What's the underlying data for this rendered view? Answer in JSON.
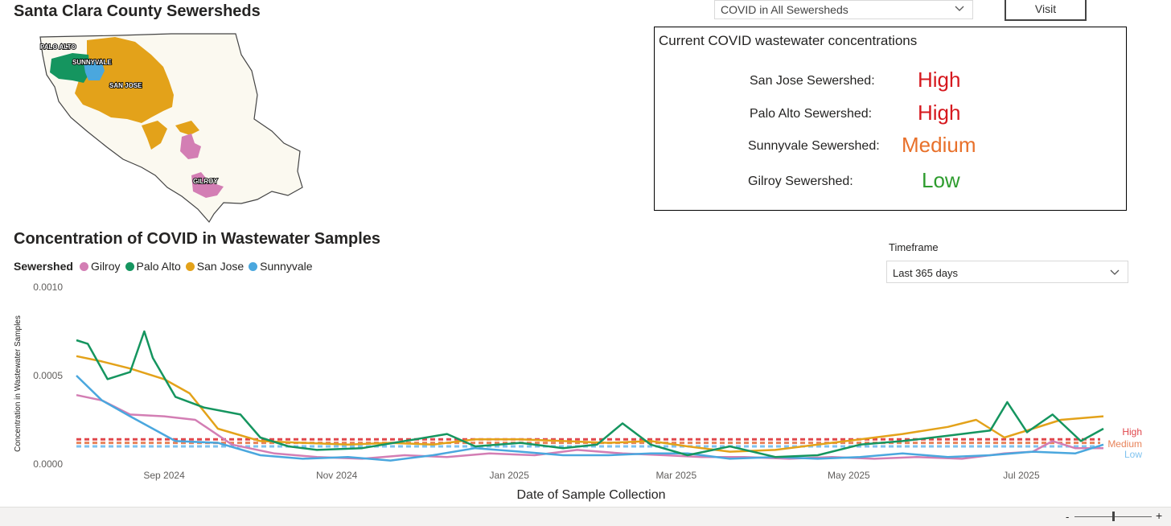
{
  "map_panel": {
    "title": "Santa Clara County Sewersheds",
    "labels": {
      "palo_alto": "PALO ALTO",
      "sunnyvale": "SUNNYVALE",
      "san_jose": "SAN JOSE",
      "gilroy": "GILROY"
    }
  },
  "controls": {
    "measure_select": "COVID in All Sewersheds",
    "visit_button": "Visit"
  },
  "concentrations": {
    "title": "Current COVID wastewater concentrations",
    "rows": [
      {
        "name": "San Jose Sewershed:",
        "level": "High",
        "color": "#d6181e"
      },
      {
        "name": "Palo Alto Sewershed:",
        "level": "High",
        "color": "#d6181e"
      },
      {
        "name": "Sunnyvale Sewershed:",
        "level": "Medium",
        "color": "#e8702a"
      },
      {
        "name": "Gilroy Sewershed:",
        "level": "Low",
        "color": "#2e9c2e"
      }
    ]
  },
  "timeframe": {
    "label": "Timeframe",
    "value": "Last 365 days"
  },
  "colors": {
    "gilroy": "#d37eb4",
    "palo_alto": "#15955f",
    "san_jose": "#e3a21a",
    "sunnyvale": "#4aa7de",
    "high_line": "#e0474c",
    "medium_line": "#e8835a",
    "low_line": "#7ec2ef"
  },
  "chart_data": {
    "type": "line",
    "title": "Concentration of COVID in Wastewater Samples",
    "legend_title": "Sewershed",
    "legend_placement": "top-left",
    "xlabel": "Date of Sample Collection",
    "ylabel": "Concentration in Wastewater Samples",
    "x_range": [
      "2024-08-01",
      "2025-07-30"
    ],
    "ylim": [
      0,
      0.001
    ],
    "y_ticks": [
      "0.0000",
      "0.0005",
      "0.0010"
    ],
    "x_ticks": [
      {
        "date": "2024-09-01",
        "label": "Sep 2024"
      },
      {
        "date": "2024-11-01",
        "label": "Nov 2024"
      },
      {
        "date": "2025-01-01",
        "label": "Jan 2025"
      },
      {
        "date": "2025-03-01",
        "label": "Mar 2025"
      },
      {
        "date": "2025-05-01",
        "label": "May 2025"
      },
      {
        "date": "2025-07-01",
        "label": "Jul 2025"
      }
    ],
    "grid": false,
    "thresholds": [
      {
        "name": "High",
        "value": 0.00014
      },
      {
        "name": "Medium",
        "value": 0.00012
      },
      {
        "name": "Low",
        "value": 0.0001
      }
    ],
    "series": [
      {
        "name": "Gilroy",
        "x": [
          "2024-08-01",
          "2024-08-10",
          "2024-08-20",
          "2024-09-01",
          "2024-09-12",
          "2024-09-25",
          "2024-10-10",
          "2024-10-25",
          "2024-11-10",
          "2024-11-25",
          "2024-12-10",
          "2024-12-25",
          "2025-01-10",
          "2025-01-25",
          "2025-02-10",
          "2025-02-25",
          "2025-03-10",
          "2025-03-25",
          "2025-04-10",
          "2025-04-25",
          "2025-05-10",
          "2025-05-25",
          "2025-06-10",
          "2025-06-25",
          "2025-07-05",
          "2025-07-12",
          "2025-07-20",
          "2025-07-30"
        ],
        "values": [
          0.00039,
          0.00036,
          0.00028,
          0.00027,
          0.00025,
          0.00011,
          6e-05,
          4e-05,
          3e-05,
          5e-05,
          4e-05,
          6e-05,
          5e-05,
          8e-05,
          6e-05,
          5e-05,
          4e-05,
          4e-05,
          3e-05,
          4e-05,
          3e-05,
          4e-05,
          3e-05,
          6e-05,
          7e-05,
          0.00013,
          9e-05,
          9e-05
        ]
      },
      {
        "name": "Palo Alto",
        "x": [
          "2024-08-01",
          "2024-08-05",
          "2024-08-12",
          "2024-08-20",
          "2024-08-25",
          "2024-08-28",
          "2024-09-05",
          "2024-09-15",
          "2024-09-28",
          "2024-10-05",
          "2024-10-15",
          "2024-10-25",
          "2024-11-10",
          "2024-11-25",
          "2024-12-10",
          "2024-12-20",
          "2025-01-05",
          "2025-01-20",
          "2025-02-01",
          "2025-02-10",
          "2025-02-20",
          "2025-03-05",
          "2025-03-20",
          "2025-04-05",
          "2025-04-20",
          "2025-05-05",
          "2025-05-20",
          "2025-06-05",
          "2025-06-20",
          "2025-06-26",
          "2025-07-03",
          "2025-07-12",
          "2025-07-22",
          "2025-07-30"
        ],
        "values": [
          0.0007,
          0.00068,
          0.00048,
          0.00052,
          0.00075,
          0.0006,
          0.00038,
          0.00032,
          0.00028,
          0.00015,
          0.0001,
          8e-05,
          9e-05,
          0.00013,
          0.00017,
          0.0001,
          0.00012,
          9e-05,
          0.00011,
          0.00023,
          0.00011,
          5e-05,
          0.0001,
          4e-05,
          5e-05,
          0.00011,
          0.00013,
          0.00016,
          0.00019,
          0.00035,
          0.00018,
          0.00028,
          0.00013,
          0.0002
        ]
      },
      {
        "name": "San Jose",
        "x": [
          "2024-08-01",
          "2024-08-10",
          "2024-08-20",
          "2024-09-01",
          "2024-09-10",
          "2024-09-20",
          "2024-10-05",
          "2024-10-20",
          "2024-11-05",
          "2024-11-20",
          "2024-12-05",
          "2024-12-20",
          "2025-01-05",
          "2025-01-20",
          "2025-02-05",
          "2025-02-20",
          "2025-03-05",
          "2025-03-20",
          "2025-04-05",
          "2025-04-20",
          "2025-05-05",
          "2025-05-20",
          "2025-06-05",
          "2025-06-15",
          "2025-06-25",
          "2025-07-05",
          "2025-07-15",
          "2025-07-30"
        ],
        "values": [
          0.00061,
          0.00058,
          0.00054,
          0.00048,
          0.0004,
          0.0002,
          0.00013,
          0.00012,
          0.00011,
          0.00012,
          0.00011,
          0.00014,
          0.00014,
          0.00013,
          0.00012,
          0.00013,
          0.0001,
          7e-05,
          8e-05,
          0.00011,
          0.00014,
          0.00017,
          0.00021,
          0.00025,
          0.00015,
          0.0002,
          0.00025,
          0.00027
        ]
      },
      {
        "name": "Sunnyvale",
        "x": [
          "2024-08-01",
          "2024-08-10",
          "2024-08-20",
          "2024-08-28",
          "2024-09-05",
          "2024-09-20",
          "2024-10-05",
          "2024-10-20",
          "2024-11-05",
          "2024-11-20",
          "2024-12-05",
          "2024-12-20",
          "2025-01-05",
          "2025-01-20",
          "2025-02-05",
          "2025-02-20",
          "2025-03-05",
          "2025-03-20",
          "2025-04-05",
          "2025-04-20",
          "2025-05-05",
          "2025-05-20",
          "2025-06-05",
          "2025-06-20",
          "2025-07-05",
          "2025-07-20",
          "2025-07-30"
        ],
        "values": [
          0.0005,
          0.00036,
          0.00027,
          0.0002,
          0.00013,
          0.00012,
          5e-05,
          3e-05,
          4e-05,
          2e-05,
          5e-05,
          9e-05,
          7e-05,
          5e-05,
          5e-05,
          6e-05,
          6e-05,
          3e-05,
          4e-05,
          3e-05,
          4e-05,
          6e-05,
          4e-05,
          5e-05,
          7e-05,
          6e-05,
          0.00011
        ]
      }
    ]
  },
  "zoom": {
    "minus": "-",
    "plus": "+"
  }
}
